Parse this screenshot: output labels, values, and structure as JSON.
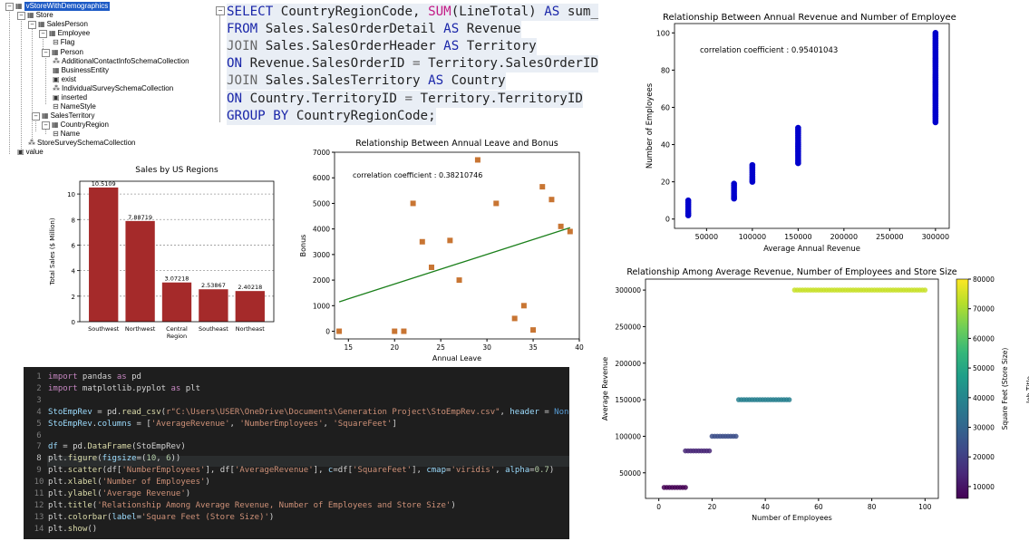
{
  "xml_tree": {
    "nodes": [
      {
        "label": "vStoreWithDemographics",
        "icon": "table",
        "toggle": "−",
        "selected": true
      },
      {
        "label": "Store",
        "icon": "table",
        "toggle": "−"
      },
      {
        "label": "SalesPerson",
        "icon": "table",
        "toggle": "−"
      },
      {
        "label": "Employee",
        "icon": "table",
        "toggle": "−"
      },
      {
        "label": "Flag",
        "icon": "attr"
      },
      {
        "label": "Person",
        "icon": "table",
        "toggle": "−"
      },
      {
        "label": "AdditionalContactInfoSchemaCollection",
        "icon": "schema"
      },
      {
        "label": "BusinessEntity",
        "icon": "table"
      },
      {
        "label": "exist",
        "icon": "func"
      },
      {
        "label": "IndividualSurveySchemaCollection",
        "icon": "schema"
      },
      {
        "label": "inserted",
        "icon": "func"
      },
      {
        "label": "NameStyle",
        "icon": "attr"
      },
      {
        "label": "SalesTerritory",
        "icon": "table",
        "toggle": "−"
      },
      {
        "label": "CountryRegion",
        "icon": "table",
        "toggle": "−"
      },
      {
        "label": "Name",
        "icon": "attr"
      },
      {
        "label": "StoreSurveySchemaCollection",
        "icon": "schema"
      },
      {
        "label": "value",
        "icon": "func"
      }
    ]
  },
  "sql_query": {
    "collapse_glyph": "−",
    "lines": [
      [
        {
          "t": "SELECT",
          "c": "kw"
        },
        {
          "t": " CountryRegionCode, ",
          "c": "plain"
        },
        {
          "t": "SUM",
          "c": "fn"
        },
        {
          "t": "(LineTotal) ",
          "c": "plain"
        },
        {
          "t": "AS",
          "c": "kw"
        },
        {
          "t": " sum_rev",
          "c": "plain"
        }
      ],
      [
        {
          "t": "FROM",
          "c": "kw"
        },
        {
          "t": " Sales.SalesOrderDetail ",
          "c": "plain"
        },
        {
          "t": "AS",
          "c": "kw"
        },
        {
          "t": " Revenue",
          "c": "plain"
        }
      ],
      [
        {
          "t": "JOIN",
          "c": "op"
        },
        {
          "t": " Sales.SalesOrderHeader ",
          "c": "plain"
        },
        {
          "t": "AS",
          "c": "kw"
        },
        {
          "t": " Territory",
          "c": "plain"
        }
      ],
      [
        {
          "t": "ON",
          "c": "kw"
        },
        {
          "t": " Revenue.SalesOrderID ",
          "c": "plain"
        },
        {
          "t": "=",
          "c": "op"
        },
        {
          "t": " Territory.SalesOrderID",
          "c": "plain"
        }
      ],
      [
        {
          "t": "JOIN",
          "c": "op"
        },
        {
          "t": " Sales.SalesTerritory ",
          "c": "plain"
        },
        {
          "t": "AS",
          "c": "kw"
        },
        {
          "t": " Country",
          "c": "plain"
        }
      ],
      [
        {
          "t": "ON",
          "c": "kw"
        },
        {
          "t": " Country.TerritoryID ",
          "c": "plain"
        },
        {
          "t": "=",
          "c": "op"
        },
        {
          "t": " Territory.TerritoryID",
          "c": "plain"
        }
      ],
      [
        {
          "t": "GROUP BY",
          "c": "kw"
        },
        {
          "t": " CountryRegionCode;",
          "c": "plain"
        }
      ]
    ]
  },
  "python_code": {
    "lines": [
      [
        {
          "t": "import",
          "c": "c-kw"
        },
        {
          "t": " pandas ",
          "c": ""
        },
        {
          "t": "as",
          "c": "c-kw"
        },
        {
          "t": " pd",
          "c": ""
        }
      ],
      [
        {
          "t": "import",
          "c": "c-kw"
        },
        {
          "t": " matplotlib.pyplot ",
          "c": ""
        },
        {
          "t": "as",
          "c": "c-kw"
        },
        {
          "t": " plt",
          "c": ""
        }
      ],
      [],
      [
        {
          "t": "StoEmpRev",
          "c": "c-var"
        },
        {
          "t": " = pd.",
          "c": ""
        },
        {
          "t": "read_csv",
          "c": "c-fn"
        },
        {
          "t": "(",
          "c": ""
        },
        {
          "t": "r\"C:\\Users\\USER\\OneDrive\\Documents\\Generation Project\\StoEmpRev.csv\"",
          "c": "c-str"
        },
        {
          "t": ", ",
          "c": ""
        },
        {
          "t": "header",
          "c": "c-var"
        },
        {
          "t": " = ",
          "c": ""
        },
        {
          "t": "None",
          "c": "c-kw2"
        },
        {
          "t": ")",
          "c": ""
        }
      ],
      [
        {
          "t": "StoEmpRev",
          "c": "c-var"
        },
        {
          "t": ".",
          "c": ""
        },
        {
          "t": "columns",
          "c": "c-var"
        },
        {
          "t": " = [",
          "c": ""
        },
        {
          "t": "'AverageRevenue'",
          "c": "c-str"
        },
        {
          "t": ", ",
          "c": ""
        },
        {
          "t": "'NumberEmployees'",
          "c": "c-str"
        },
        {
          "t": ", ",
          "c": ""
        },
        {
          "t": "'SquareFeet'",
          "c": "c-str"
        },
        {
          "t": "]",
          "c": ""
        }
      ],
      [],
      [
        {
          "t": "df",
          "c": "c-var"
        },
        {
          "t": " = pd.",
          "c": ""
        },
        {
          "t": "DataFrame",
          "c": "c-fn"
        },
        {
          "t": "(StoEmpRev)",
          "c": ""
        }
      ],
      [
        {
          "t": "plt.",
          "c": ""
        },
        {
          "t": "figure",
          "c": "c-fn"
        },
        {
          "t": "(",
          "c": ""
        },
        {
          "t": "figsize",
          "c": "c-var"
        },
        {
          "t": "=(",
          "c": ""
        },
        {
          "t": "10",
          "c": "c-num"
        },
        {
          "t": ", ",
          "c": ""
        },
        {
          "t": "6",
          "c": "c-num"
        },
        {
          "t": "))",
          "c": ""
        }
      ],
      [
        {
          "t": "plt.",
          "c": ""
        },
        {
          "t": "scatter",
          "c": "c-fn"
        },
        {
          "t": "(df[",
          "c": ""
        },
        {
          "t": "'NumberEmployees'",
          "c": "c-str"
        },
        {
          "t": "], df[",
          "c": ""
        },
        {
          "t": "'AverageRevenue'",
          "c": "c-str"
        },
        {
          "t": "], ",
          "c": ""
        },
        {
          "t": "c",
          "c": "c-var"
        },
        {
          "t": "=df[",
          "c": ""
        },
        {
          "t": "'SquareFeet'",
          "c": "c-str"
        },
        {
          "t": "], ",
          "c": ""
        },
        {
          "t": "cmap",
          "c": "c-var"
        },
        {
          "t": "=",
          "c": ""
        },
        {
          "t": "'viridis'",
          "c": "c-str"
        },
        {
          "t": ", ",
          "c": ""
        },
        {
          "t": "alpha",
          "c": "c-var"
        },
        {
          "t": "=",
          "c": ""
        },
        {
          "t": "0.7",
          "c": "c-num"
        },
        {
          "t": ")",
          "c": ""
        }
      ],
      [
        {
          "t": "plt.",
          "c": ""
        },
        {
          "t": "xlabel",
          "c": "c-fn"
        },
        {
          "t": "(",
          "c": ""
        },
        {
          "t": "'Number of Employees'",
          "c": "c-str"
        },
        {
          "t": ")",
          "c": ""
        }
      ],
      [
        {
          "t": "plt.",
          "c": ""
        },
        {
          "t": "ylabel",
          "c": "c-fn"
        },
        {
          "t": "(",
          "c": ""
        },
        {
          "t": "'Average Revenue'",
          "c": "c-str"
        },
        {
          "t": ")",
          "c": ""
        }
      ],
      [
        {
          "t": "plt.",
          "c": ""
        },
        {
          "t": "title",
          "c": "c-fn"
        },
        {
          "t": "(",
          "c": ""
        },
        {
          "t": "'Relationship Among Average Revenue, Number of Employees and Store Size'",
          "c": "c-str"
        },
        {
          "t": ")",
          "c": ""
        }
      ],
      [
        {
          "t": "plt.",
          "c": ""
        },
        {
          "t": "colorbar",
          "c": "c-fn"
        },
        {
          "t": "(",
          "c": ""
        },
        {
          "t": "label",
          "c": "c-var"
        },
        {
          "t": "=",
          "c": ""
        },
        {
          "t": "'Square Feet (Store Size)'",
          "c": "c-str"
        },
        {
          "t": ")",
          "c": ""
        }
      ],
      [
        {
          "t": "plt.",
          "c": ""
        },
        {
          "t": "show",
          "c": "c-fn"
        },
        {
          "t": "()",
          "c": ""
        }
      ]
    ]
  },
  "chart_data": [
    {
      "id": "bar_regions",
      "type": "bar",
      "title": "Sales by US Regions",
      "ylabel": "Total Sales ($ Million)",
      "categories": [
        "Southwest",
        "Northwest",
        "Central Region",
        "Southeast",
        "Northeast"
      ],
      "values": [
        10.5109,
        7.88719,
        3.07218,
        2.53867,
        2.40218
      ],
      "value_labels": [
        "10.5109",
        "7.88719",
        "3.07218",
        "2.53867",
        "2.40218"
      ],
      "ylim": [
        0,
        11
      ],
      "yticks": [
        "0",
        "2",
        "4",
        "6",
        "8",
        "10"
      ],
      "grid": "horizontal dotted",
      "color": "#a52a2a"
    },
    {
      "id": "leave_bonus",
      "type": "scatter",
      "title": "Relationship Between Annual Leave and Bonus",
      "xlabel": "Annual Leave",
      "ylabel": "Bonus",
      "annotation": "correlation coefficient : 0.38210746",
      "xlim": [
        13.5,
        40
      ],
      "ylim": [
        -300,
        7000
      ],
      "xticks": [
        "15",
        "20",
        "25",
        "30",
        "35",
        "40"
      ],
      "yticks": [
        "0",
        "1000",
        "2000",
        "3000",
        "4000",
        "5000",
        "6000",
        "7000"
      ],
      "points": [
        [
          14,
          0
        ],
        [
          20,
          0
        ],
        [
          21,
          0
        ],
        [
          22,
          5000
        ],
        [
          23,
          3500
        ],
        [
          24,
          2500
        ],
        [
          26,
          3550
        ],
        [
          27,
          2000
        ],
        [
          29,
          6700
        ],
        [
          31,
          5000
        ],
        [
          33,
          500
        ],
        [
          34,
          1000
        ],
        [
          35,
          50
        ],
        [
          36,
          5650
        ],
        [
          37,
          5150
        ],
        [
          38,
          4100
        ],
        [
          39,
          3900
        ]
      ],
      "trendline": [
        [
          14,
          1150
        ],
        [
          39,
          4050
        ]
      ],
      "marker_color": "#c87533",
      "line_color": "#1a7f1a"
    },
    {
      "id": "revenue_employees",
      "type": "scatter",
      "title": "Relationship Between Annual Revenue and Number of Employees",
      "xlabel": "Average Annual Revenue",
      "ylabel": "Number of Employees",
      "annotation": "correlation coefficient : 0.95401043",
      "xlim": [
        15000,
        315000
      ],
      "ylim": [
        -5,
        105
      ],
      "xticks": [
        "50000",
        "100000",
        "150000",
        "200000",
        "250000",
        "300000"
      ],
      "yticks": [
        "0",
        "20",
        "40",
        "60",
        "80",
        "100"
      ],
      "groups": [
        {
          "x": 30000,
          "y": [
            2,
            10
          ]
        },
        {
          "x": 80000,
          "y": [
            11,
            19
          ]
        },
        {
          "x": 100000,
          "y": [
            20,
            29
          ]
        },
        {
          "x": 150000,
          "y": [
            30,
            49
          ]
        },
        {
          "x": 300000,
          "y": [
            52,
            100
          ]
        }
      ],
      "marker_color": "#0000cc"
    },
    {
      "id": "revenue_employees_size",
      "type": "scatter",
      "title": "Relationship Among Average Revenue, Number of Employees and Store Size",
      "xlabel": "Number of Employees",
      "ylabel": "Average Revenue",
      "colorbar_label": "Square Feet (Store Size)",
      "colorbar_side_text": "Job Title",
      "xlim": [
        -5,
        105
      ],
      "ylim": [
        15000,
        315000
      ],
      "xticks": [
        "0",
        "20",
        "40",
        "60",
        "80",
        "100"
      ],
      "yticks": [
        "50000",
        "100000",
        "150000",
        "200000",
        "250000",
        "300000"
      ],
      "colorbar_ticks": [
        "10000",
        "20000",
        "30000",
        "40000",
        "50000",
        "60000",
        "70000",
        "80000"
      ],
      "colorbar_range": [
        6000,
        80000
      ],
      "cmap": "viridis",
      "groups": [
        {
          "y": 30000,
          "x": [
            2,
            10
          ],
          "sqft": 6000
        },
        {
          "y": 80000,
          "x": [
            10,
            19
          ],
          "sqft": 14000
        },
        {
          "y": 100000,
          "x": [
            20,
            29
          ],
          "sqft": 24000
        },
        {
          "y": 150000,
          "x": [
            30,
            49
          ],
          "sqft": 38000
        },
        {
          "y": 300000,
          "x": [
            51,
            100
          ],
          "sqft": 74000
        }
      ]
    }
  ]
}
